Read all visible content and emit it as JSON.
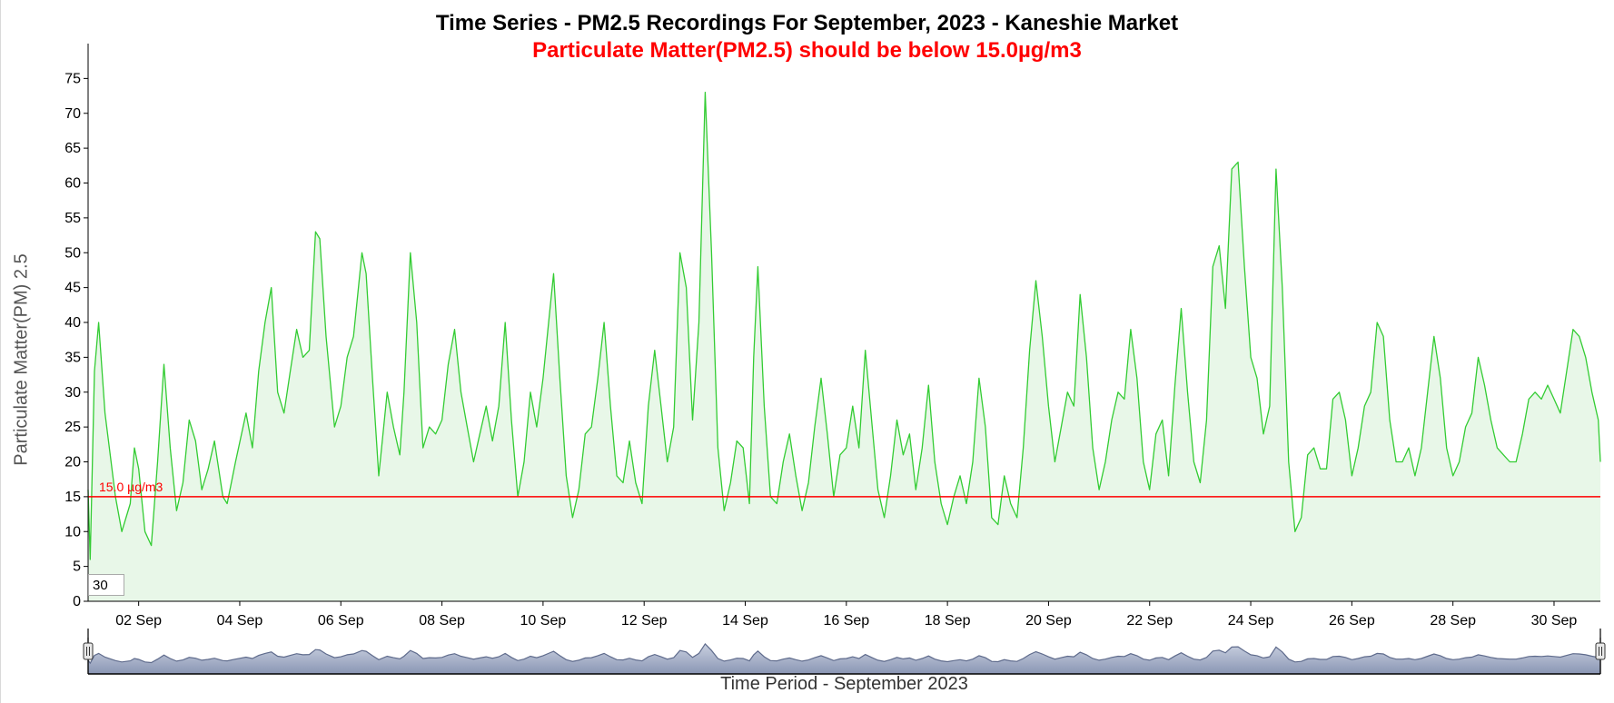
{
  "chart_data": {
    "type": "area",
    "title": "Time Series - PM2.5 Recordings For September, 2023 - Kaneshie Market",
    "subtitle": "Particulate Matter(PM2.5) should be below 15.0µg/m3",
    "xlabel": "Time Period - September 2023",
    "ylabel": "Particulate Matter(PM) 2.5",
    "ylim": [
      0,
      80
    ],
    "xlim": [
      "2023-09-01 00:00",
      "2023-09-30 22:00"
    ],
    "y_ticks": [
      "0",
      "5",
      "10",
      "15",
      "20",
      "25",
      "30",
      "35",
      "40",
      "45",
      "50",
      "55",
      "60",
      "65",
      "70",
      "75"
    ],
    "x_ticks": [
      {
        "date": "2023-09-02",
        "label": "02 Sep"
      },
      {
        "date": "2023-09-04",
        "label": "04 Sep"
      },
      {
        "date": "2023-09-06",
        "label": "06 Sep"
      },
      {
        "date": "2023-09-08",
        "label": "08 Sep"
      },
      {
        "date": "2023-09-10",
        "label": "10 Sep"
      },
      {
        "date": "2023-09-12",
        "label": "12 Sep"
      },
      {
        "date": "2023-09-14",
        "label": "14 Sep"
      },
      {
        "date": "2023-09-16",
        "label": "16 Sep"
      },
      {
        "date": "2023-09-18",
        "label": "18 Sep"
      },
      {
        "date": "2023-09-20",
        "label": "20 Sep"
      },
      {
        "date": "2023-09-22",
        "label": "22 Sep"
      },
      {
        "date": "2023-09-24",
        "label": "24 Sep"
      },
      {
        "date": "2023-09-26",
        "label": "26 Sep"
      },
      {
        "date": "2023-09-28",
        "label": "28 Sep"
      },
      {
        "date": "2023-09-30",
        "label": "30 Sep"
      }
    ],
    "threshold": {
      "value": 15.0,
      "label": "15.0 µg/m3",
      "color": "#ff0000"
    },
    "series": [
      {
        "color": "#33cc33",
        "fill": "#e8f7e8",
        "points": [
          [
            "2023-09-01 00:00",
            16
          ],
          [
            "2023-09-01 01:00",
            6
          ],
          [
            "2023-09-01 03:00",
            33
          ],
          [
            "2023-09-01 05:00",
            40
          ],
          [
            "2023-09-01 08:00",
            27
          ],
          [
            "2023-09-01 13:00",
            15
          ],
          [
            "2023-09-01 16:00",
            10
          ],
          [
            "2023-09-01 20:00",
            14
          ],
          [
            "2023-09-01 22:00",
            22
          ],
          [
            "2023-09-02 00:00",
            19
          ],
          [
            "2023-09-02 03:00",
            10
          ],
          [
            "2023-09-02 06:00",
            8
          ],
          [
            "2023-09-02 09:00",
            20
          ],
          [
            "2023-09-02 12:00",
            34
          ],
          [
            "2023-09-02 15:00",
            22
          ],
          [
            "2023-09-02 18:00",
            13
          ],
          [
            "2023-09-02 21:00",
            17
          ],
          [
            "2023-09-03 00:00",
            26
          ],
          [
            "2023-09-03 03:00",
            23
          ],
          [
            "2023-09-03 06:00",
            16
          ],
          [
            "2023-09-03 09:00",
            19
          ],
          [
            "2023-09-03 12:00",
            23
          ],
          [
            "2023-09-03 16:00",
            15
          ],
          [
            "2023-09-03 18:00",
            14
          ],
          [
            "2023-09-03 22:00",
            20
          ],
          [
            "2023-09-04 03:00",
            27
          ],
          [
            "2023-09-04 06:00",
            22
          ],
          [
            "2023-09-04 09:00",
            33
          ],
          [
            "2023-09-04 12:00",
            40
          ],
          [
            "2023-09-04 15:00",
            45
          ],
          [
            "2023-09-04 18:00",
            30
          ],
          [
            "2023-09-04 21:00",
            27
          ],
          [
            "2023-09-05 00:00",
            33
          ],
          [
            "2023-09-05 03:00",
            39
          ],
          [
            "2023-09-05 06:00",
            35
          ],
          [
            "2023-09-05 09:00",
            36
          ],
          [
            "2023-09-05 12:00",
            53
          ],
          [
            "2023-09-05 14:00",
            52
          ],
          [
            "2023-09-05 17:00",
            38
          ],
          [
            "2023-09-05 21:00",
            25
          ],
          [
            "2023-09-06 00:00",
            28
          ],
          [
            "2023-09-06 03:00",
            35
          ],
          [
            "2023-09-06 06:00",
            38
          ],
          [
            "2023-09-06 10:00",
            50
          ],
          [
            "2023-09-06 12:00",
            47
          ],
          [
            "2023-09-06 15:00",
            32
          ],
          [
            "2023-09-06 18:00",
            18
          ],
          [
            "2023-09-06 22:00",
            30
          ],
          [
            "2023-09-07 01:00",
            25
          ],
          [
            "2023-09-07 04:00",
            21
          ],
          [
            "2023-09-07 06:00",
            30
          ],
          [
            "2023-09-07 09:00",
            50
          ],
          [
            "2023-09-07 12:00",
            40
          ],
          [
            "2023-09-07 15:00",
            22
          ],
          [
            "2023-09-07 18:00",
            25
          ],
          [
            "2023-09-07 21:00",
            24
          ],
          [
            "2023-09-08 00:00",
            26
          ],
          [
            "2023-09-08 03:00",
            34
          ],
          [
            "2023-09-08 06:00",
            39
          ],
          [
            "2023-09-08 09:00",
            30
          ],
          [
            "2023-09-08 12:00",
            25
          ],
          [
            "2023-09-08 15:00",
            20
          ],
          [
            "2023-09-08 18:00",
            24
          ],
          [
            "2023-09-08 21:00",
            28
          ],
          [
            "2023-09-09 00:00",
            23
          ],
          [
            "2023-09-09 03:00",
            28
          ],
          [
            "2023-09-09 06:00",
            40
          ],
          [
            "2023-09-09 09:00",
            26
          ],
          [
            "2023-09-09 12:00",
            15
          ],
          [
            "2023-09-09 15:00",
            20
          ],
          [
            "2023-09-09 18:00",
            30
          ],
          [
            "2023-09-09 21:00",
            25
          ],
          [
            "2023-09-10 00:00",
            32
          ],
          [
            "2023-09-10 03:00",
            41
          ],
          [
            "2023-09-10 05:00",
            47
          ],
          [
            "2023-09-10 08:00",
            32
          ],
          [
            "2023-09-10 11:00",
            18
          ],
          [
            "2023-09-10 14:00",
            12
          ],
          [
            "2023-09-10 17:00",
            16
          ],
          [
            "2023-09-10 20:00",
            24
          ],
          [
            "2023-09-10 23:00",
            25
          ],
          [
            "2023-09-11 02:00",
            32
          ],
          [
            "2023-09-11 05:00",
            40
          ],
          [
            "2023-09-11 08:00",
            28
          ],
          [
            "2023-09-11 11:00",
            18
          ],
          [
            "2023-09-11 14:00",
            17
          ],
          [
            "2023-09-11 17:00",
            23
          ],
          [
            "2023-09-11 20:00",
            17
          ],
          [
            "2023-09-11 23:00",
            14
          ],
          [
            "2023-09-12 02:00",
            28
          ],
          [
            "2023-09-12 05:00",
            36
          ],
          [
            "2023-09-12 08:00",
            28
          ],
          [
            "2023-09-12 11:00",
            20
          ],
          [
            "2023-09-12 14:00",
            25
          ],
          [
            "2023-09-12 17:00",
            50
          ],
          [
            "2023-09-12 20:00",
            45
          ],
          [
            "2023-09-12 23:00",
            26
          ],
          [
            "2023-09-13 02:00",
            40
          ],
          [
            "2023-09-13 05:00",
            73
          ],
          [
            "2023-09-13 08:00",
            50
          ],
          [
            "2023-09-13 11:00",
            22
          ],
          [
            "2023-09-13 14:00",
            13
          ],
          [
            "2023-09-13 17:00",
            17
          ],
          [
            "2023-09-13 20:00",
            23
          ],
          [
            "2023-09-13 23:00",
            22
          ],
          [
            "2023-09-14 02:00",
            14
          ],
          [
            "2023-09-14 04:00",
            35
          ],
          [
            "2023-09-14 06:00",
            48
          ],
          [
            "2023-09-14 09:00",
            28
          ],
          [
            "2023-09-14 12:00",
            15
          ],
          [
            "2023-09-14 15:00",
            14
          ],
          [
            "2023-09-14 18:00",
            20
          ],
          [
            "2023-09-14 21:00",
            24
          ],
          [
            "2023-09-15 00:00",
            18
          ],
          [
            "2023-09-15 03:00",
            13
          ],
          [
            "2023-09-15 06:00",
            17
          ],
          [
            "2023-09-15 09:00",
            25
          ],
          [
            "2023-09-15 12:00",
            32
          ],
          [
            "2023-09-15 15:00",
            24
          ],
          [
            "2023-09-15 18:00",
            15
          ],
          [
            "2023-09-15 21:00",
            21
          ],
          [
            "2023-09-16 00:00",
            22
          ],
          [
            "2023-09-16 03:00",
            28
          ],
          [
            "2023-09-16 06:00",
            22
          ],
          [
            "2023-09-16 09:00",
            36
          ],
          [
            "2023-09-16 12:00",
            26
          ],
          [
            "2023-09-16 15:00",
            16
          ],
          [
            "2023-09-16 18:00",
            12
          ],
          [
            "2023-09-16 21:00",
            18
          ],
          [
            "2023-09-17 00:00",
            26
          ],
          [
            "2023-09-17 03:00",
            21
          ],
          [
            "2023-09-17 06:00",
            24
          ],
          [
            "2023-09-17 09:00",
            16
          ],
          [
            "2023-09-17 12:00",
            22
          ],
          [
            "2023-09-17 15:00",
            31
          ],
          [
            "2023-09-17 18:00",
            20
          ],
          [
            "2023-09-17 21:00",
            14
          ],
          [
            "2023-09-18 00:00",
            11
          ],
          [
            "2023-09-18 03:00",
            15
          ],
          [
            "2023-09-18 06:00",
            18
          ],
          [
            "2023-09-18 09:00",
            14
          ],
          [
            "2023-09-18 12:00",
            20
          ],
          [
            "2023-09-18 15:00",
            32
          ],
          [
            "2023-09-18 18:00",
            25
          ],
          [
            "2023-09-18 21:00",
            12
          ],
          [
            "2023-09-19 00:00",
            11
          ],
          [
            "2023-09-19 03:00",
            18
          ],
          [
            "2023-09-19 06:00",
            14
          ],
          [
            "2023-09-19 09:00",
            12
          ],
          [
            "2023-09-19 12:00",
            22
          ],
          [
            "2023-09-19 15:00",
            36
          ],
          [
            "2023-09-19 18:00",
            46
          ],
          [
            "2023-09-19 21:00",
            38
          ],
          [
            "2023-09-20 00:00",
            28
          ],
          [
            "2023-09-20 03:00",
            20
          ],
          [
            "2023-09-20 06:00",
            25
          ],
          [
            "2023-09-20 09:00",
            30
          ],
          [
            "2023-09-20 12:00",
            28
          ],
          [
            "2023-09-20 15:00",
            44
          ],
          [
            "2023-09-20 18:00",
            35
          ],
          [
            "2023-09-20 21:00",
            22
          ],
          [
            "2023-09-21 00:00",
            16
          ],
          [
            "2023-09-21 03:00",
            20
          ],
          [
            "2023-09-21 06:00",
            26
          ],
          [
            "2023-09-21 09:00",
            30
          ],
          [
            "2023-09-21 12:00",
            29
          ],
          [
            "2023-09-21 15:00",
            39
          ],
          [
            "2023-09-21 18:00",
            32
          ],
          [
            "2023-09-21 21:00",
            20
          ],
          [
            "2023-09-22 00:00",
            16
          ],
          [
            "2023-09-22 03:00",
            24
          ],
          [
            "2023-09-22 06:00",
            26
          ],
          [
            "2023-09-22 09:00",
            18
          ],
          [
            "2023-09-22 12:00",
            31
          ],
          [
            "2023-09-22 15:00",
            42
          ],
          [
            "2023-09-22 18:00",
            30
          ],
          [
            "2023-09-22 21:00",
            20
          ],
          [
            "2023-09-23 00:00",
            17
          ],
          [
            "2023-09-23 03:00",
            26
          ],
          [
            "2023-09-23 06:00",
            48
          ],
          [
            "2023-09-23 09:00",
            51
          ],
          [
            "2023-09-23 12:00",
            42
          ],
          [
            "2023-09-23 15:00",
            62
          ],
          [
            "2023-09-23 18:00",
            63
          ],
          [
            "2023-09-23 21:00",
            48
          ],
          [
            "2023-09-24 00:00",
            35
          ],
          [
            "2023-09-24 03:00",
            32
          ],
          [
            "2023-09-24 06:00",
            24
          ],
          [
            "2023-09-24 09:00",
            28
          ],
          [
            "2023-09-24 12:00",
            62
          ],
          [
            "2023-09-24 15:00",
            45
          ],
          [
            "2023-09-24 18:00",
            20
          ],
          [
            "2023-09-24 21:00",
            10
          ],
          [
            "2023-09-25 00:00",
            12
          ],
          [
            "2023-09-25 03:00",
            21
          ],
          [
            "2023-09-25 06:00",
            22
          ],
          [
            "2023-09-25 09:00",
            19
          ],
          [
            "2023-09-25 12:00",
            19
          ],
          [
            "2023-09-25 15:00",
            29
          ],
          [
            "2023-09-25 18:00",
            30
          ],
          [
            "2023-09-25 21:00",
            26
          ],
          [
            "2023-09-26 00:00",
            18
          ],
          [
            "2023-09-26 03:00",
            22
          ],
          [
            "2023-09-26 06:00",
            28
          ],
          [
            "2023-09-26 09:00",
            30
          ],
          [
            "2023-09-26 12:00",
            40
          ],
          [
            "2023-09-26 15:00",
            38
          ],
          [
            "2023-09-26 18:00",
            26
          ],
          [
            "2023-09-26 21:00",
            20
          ],
          [
            "2023-09-27 00:00",
            20
          ],
          [
            "2023-09-27 03:00",
            22
          ],
          [
            "2023-09-27 06:00",
            18
          ],
          [
            "2023-09-27 09:00",
            22
          ],
          [
            "2023-09-27 12:00",
            30
          ],
          [
            "2023-09-27 15:00",
            38
          ],
          [
            "2023-09-27 18:00",
            32
          ],
          [
            "2023-09-27 21:00",
            22
          ],
          [
            "2023-09-28 00:00",
            18
          ],
          [
            "2023-09-28 03:00",
            20
          ],
          [
            "2023-09-28 06:00",
            25
          ],
          [
            "2023-09-28 09:00",
            27
          ],
          [
            "2023-09-28 12:00",
            35
          ],
          [
            "2023-09-28 15:00",
            31
          ],
          [
            "2023-09-28 18:00",
            26
          ],
          [
            "2023-09-28 21:00",
            22
          ],
          [
            "2023-09-29 00:00",
            21
          ],
          [
            "2023-09-29 03:00",
            20
          ],
          [
            "2023-09-29 06:00",
            20
          ],
          [
            "2023-09-29 09:00",
            24
          ],
          [
            "2023-09-29 12:00",
            29
          ],
          [
            "2023-09-29 15:00",
            30
          ],
          [
            "2023-09-29 18:00",
            29
          ],
          [
            "2023-09-29 21:00",
            31
          ],
          [
            "2023-09-30 00:00",
            29
          ],
          [
            "2023-09-30 03:00",
            27
          ],
          [
            "2023-09-30 06:00",
            33
          ],
          [
            "2023-09-30 09:00",
            39
          ],
          [
            "2023-09-30 12:00",
            38
          ],
          [
            "2023-09-30 15:00",
            35
          ],
          [
            "2023-09-30 18:00",
            30
          ],
          [
            "2023-09-30 21:00",
            26
          ],
          [
            "2023-09-30 22:00",
            20
          ]
        ]
      }
    ],
    "grid": false,
    "legend": "none",
    "range_selector": true,
    "roll_period": "30"
  }
}
